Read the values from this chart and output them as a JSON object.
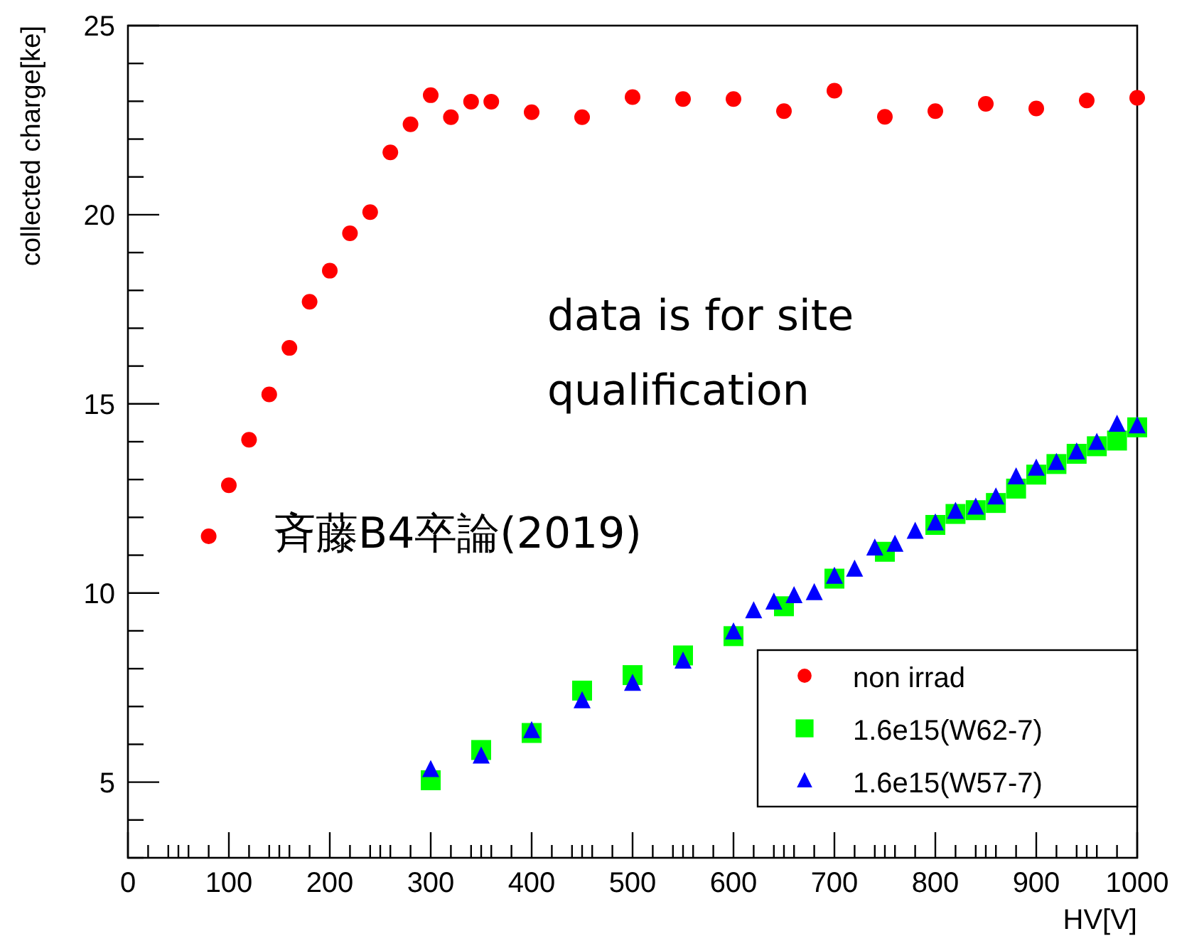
{
  "chart_data": {
    "type": "scatter",
    "xlabel": "HV[V]",
    "ylabel": "collected charge[ke]",
    "xlim": [
      0,
      1000
    ],
    "ylim": [
      3,
      25
    ],
    "xticks": [
      0,
      100,
      200,
      300,
      400,
      500,
      600,
      700,
      800,
      900,
      1000,
      {
        "value": 20,
        "label": null
      },
      {
        "value": 40,
        "label": null
      },
      {
        "value": 50,
        "label": null
      },
      {
        "value": 60,
        "label": null
      },
      {
        "value": 80,
        "label": null
      },
      {
        "value": 120,
        "label": null
      },
      {
        "value": 140,
        "label": null
      },
      {
        "value": 150,
        "label": null
      },
      {
        "value": 160,
        "label": null
      },
      {
        "value": 180,
        "label": null
      },
      {
        "value": 220,
        "label": null
      },
      {
        "value": 240,
        "label": null
      },
      {
        "value": 250,
        "label": null
      },
      {
        "value": 260,
        "label": null
      },
      {
        "value": 280,
        "label": null
      },
      {
        "value": 320,
        "label": null
      },
      {
        "value": 340,
        "label": null
      },
      {
        "value": 350,
        "label": null
      },
      {
        "value": 360,
        "label": null
      },
      {
        "value": 380,
        "label": null
      },
      {
        "value": 420,
        "label": null
      },
      {
        "value": 440,
        "label": null
      },
      {
        "value": 450,
        "label": null
      },
      {
        "value": 460,
        "label": null
      },
      {
        "value": 480,
        "label": null
      },
      {
        "value": 520,
        "label": null
      },
      {
        "value": 540,
        "label": null
      },
      {
        "value": 550,
        "label": null
      },
      {
        "value": 560,
        "label": null
      },
      {
        "value": 580,
        "label": null
      },
      {
        "value": 620,
        "label": null
      },
      {
        "value": 640,
        "label": null
      },
      {
        "value": 650,
        "label": null
      },
      {
        "value": 660,
        "label": null
      },
      {
        "value": 680,
        "label": null
      },
      {
        "value": 720,
        "label": null
      },
      {
        "value": 740,
        "label": null
      },
      {
        "value": 750,
        "label": null
      },
      {
        "value": 760,
        "label": null
      },
      {
        "value": 780,
        "label": null
      },
      {
        "value": 820,
        "label": null
      },
      {
        "value": 840,
        "label": null
      },
      {
        "value": 850,
        "label": null
      },
      {
        "value": 860,
        "label": null
      },
      {
        "value": 880,
        "label": null
      },
      {
        "value": 920,
        "label": null
      },
      {
        "value": 940,
        "label": null
      },
      {
        "value": 950,
        "label": null
      },
      {
        "value": 960,
        "label": null
      },
      {
        "value": 980,
        "label": null
      }
    ],
    "yticks": [
      5,
      10,
      15,
      20,
      25,
      {
        "value": 3,
        "label": null
      },
      {
        "value": 4,
        "label": null
      },
      {
        "value": 6,
        "label": null
      },
      {
        "value": 7,
        "label": null
      },
      {
        "value": 8,
        "label": null
      },
      {
        "value": 9,
        "label": null
      },
      {
        "value": 11,
        "label": null
      },
      {
        "value": 12,
        "label": null
      },
      {
        "value": 13,
        "label": null
      },
      {
        "value": 14,
        "label": null
      },
      {
        "value": 16,
        "label": null
      },
      {
        "value": 17,
        "label": null
      },
      {
        "value": 18,
        "label": null
      },
      {
        "value": 19,
        "label": null
      },
      {
        "value": 21,
        "label": null
      },
      {
        "value": 22,
        "label": null
      },
      {
        "value": 23,
        "label": null
      },
      {
        "value": 24,
        "label": null
      }
    ],
    "grid": false,
    "legend": "bottom right",
    "annotations": [
      "data is for site\nqualification",
      "斉藤B4卒論(2019)"
    ],
    "series": [
      {
        "name": "non irrad",
        "color": "#ff0000",
        "marker": "circle",
        "x": [
          80,
          100,
          120,
          140,
          160,
          180,
          200,
          220,
          240,
          260,
          280,
          300,
          320,
          340,
          360,
          400,
          450,
          500,
          550,
          600,
          650,
          700,
          750,
          800,
          850,
          900,
          950,
          1000
        ],
        "values": [
          11.5,
          12.85,
          14.05,
          15.25,
          16.48,
          17.7,
          18.52,
          19.51,
          20.07,
          21.65,
          22.39,
          23.16,
          22.58,
          22.99,
          22.99,
          22.71,
          22.58,
          23.11,
          23.06,
          23.06,
          22.74,
          23.28,
          22.59,
          22.74,
          22.93,
          22.81,
          23.02,
          23.09
        ]
      },
      {
        "name": "1.6e15(W62-7)",
        "color": "#00ff00",
        "marker": "square",
        "x": [
          300,
          350,
          400,
          450,
          500,
          550,
          600,
          650,
          700,
          750,
          800,
          820,
          840,
          860,
          880,
          900,
          920,
          940,
          960,
          980,
          1000
        ],
        "values": [
          5.05,
          5.85,
          6.3,
          7.42,
          7.83,
          8.35,
          8.86,
          9.65,
          10.38,
          11.09,
          11.8,
          12.09,
          12.19,
          12.38,
          12.76,
          13.13,
          13.41,
          13.68,
          13.88,
          14.03,
          14.38
        ]
      },
      {
        "name": "1.6e15(W57-7)",
        "color": "#0000ff",
        "marker": "triangle",
        "x": [
          300,
          350,
          400,
          450,
          500,
          550,
          600,
          620,
          640,
          660,
          680,
          700,
          720,
          740,
          760,
          780,
          800,
          820,
          840,
          860,
          880,
          900,
          920,
          940,
          960,
          980,
          1000
        ],
        "values": [
          5.32,
          5.68,
          6.35,
          7.14,
          7.6,
          8.19,
          8.96,
          9.52,
          9.75,
          9.92,
          10.0,
          10.43,
          10.62,
          11.18,
          11.28,
          11.62,
          11.84,
          12.15,
          12.26,
          12.53,
          13.06,
          13.29,
          13.44,
          13.72,
          13.97,
          14.45,
          14.41
        ]
      }
    ]
  }
}
